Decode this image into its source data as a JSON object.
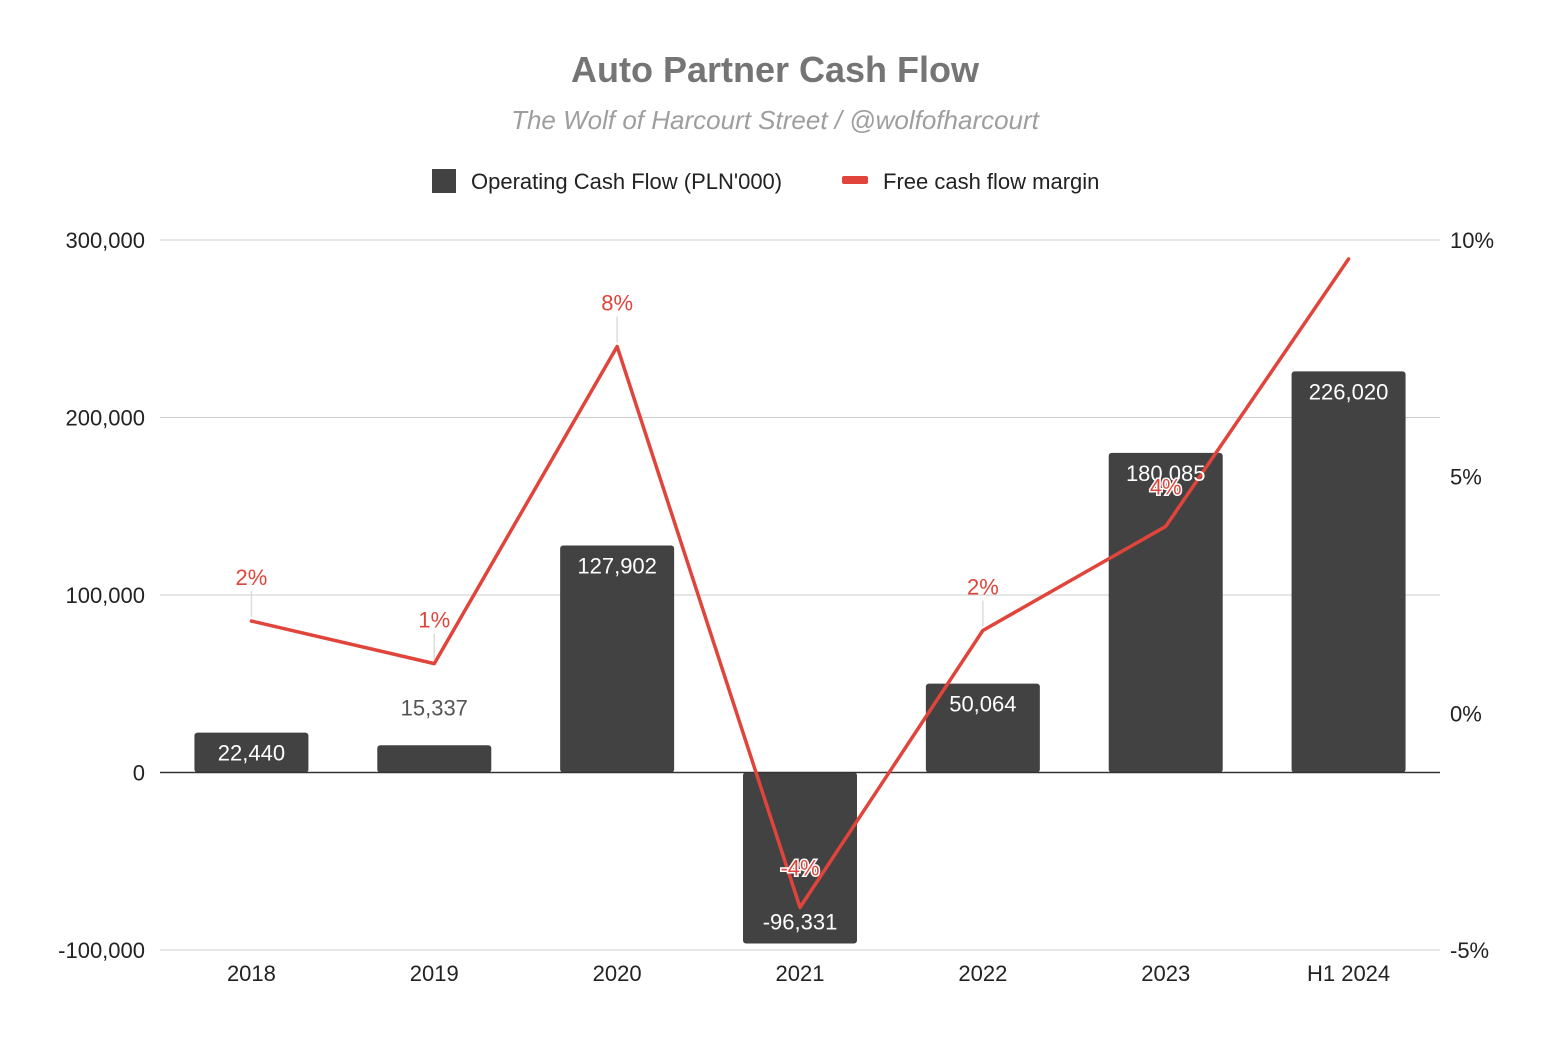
{
  "chart_data": {
    "type": "bar",
    "title": "Auto Partner Cash Flow",
    "subtitle": "The Wolf of Harcourt Street / @wolfofharcourt",
    "categories": [
      "2018",
      "2019",
      "2020",
      "2021",
      "2022",
      "2023",
      "H1 2024"
    ],
    "legend_position": "top",
    "grid": true,
    "y_left": {
      "ylim": [
        -100000,
        300000
      ],
      "ticks": [
        -100000,
        0,
        100000,
        200000,
        300000
      ],
      "tick_labels": [
        "-100,000",
        "0",
        "100,000",
        "200,000",
        "300,000"
      ]
    },
    "y_right": {
      "ylim": [
        -5,
        10
      ],
      "ticks": [
        -5,
        0,
        5,
        10
      ],
      "tick_labels": [
        "-5%",
        "0%",
        "5%",
        "10%"
      ]
    },
    "series": [
      {
        "name": "Operating Cash Flow (PLN'000)",
        "type": "bar",
        "axis": "left",
        "color": "#424242",
        "values": [
          22440,
          15337,
          127902,
          -96331,
          50064,
          180085,
          226020
        ],
        "labels": [
          "22,440",
          "15,337",
          "127,902",
          "-96,331",
          "50,064",
          "180,085",
          "226,020"
        ]
      },
      {
        "name": "Free cash flow margin",
        "type": "line",
        "axis": "right",
        "color": "#e0443a",
        "values": [
          1.95,
          1.05,
          7.75,
          -4.1,
          1.75,
          3.95,
          9.6
        ],
        "labels": [
          "2%",
          "1%",
          "8%",
          "-4%",
          "2%",
          "4%",
          ""
        ]
      }
    ]
  }
}
